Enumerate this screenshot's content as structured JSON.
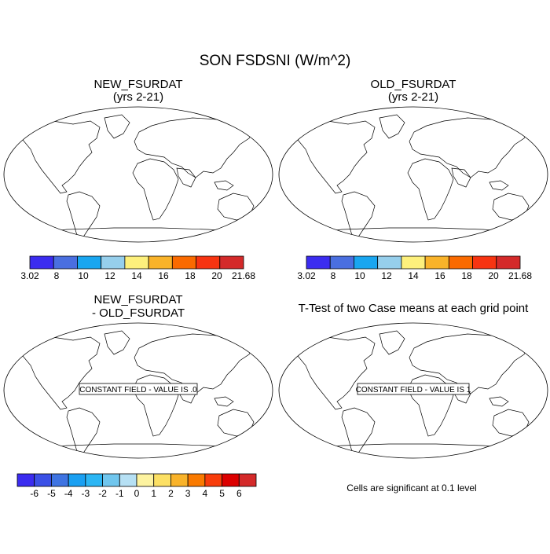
{
  "title": "SON FSDSNI (W/m^2)",
  "panels": [
    {
      "id": "new",
      "title_line1": "NEW_FSURDAT",
      "title_line2": "(yrs 2-21)",
      "fill": true
    },
    {
      "id": "old",
      "title_line1": "OLD_FSURDAT",
      "title_line2": "(yrs 2-21)",
      "fill": true
    },
    {
      "id": "diff",
      "title_line1": "NEW_FSURDAT",
      "title_line2": "- OLD_FSURDAT",
      "fill": false,
      "constant_label": "CONSTANT FIELD - VALUE IS .0"
    },
    {
      "id": "ttest",
      "title_line1": "T-Test of two Case means at each grid point",
      "title_line2": "",
      "fill": false,
      "constant_label": "CONSTANT FIELD - VALUE IS 1"
    }
  ],
  "colorbar_top": {
    "labels": [
      "3.02",
      "8",
      "10",
      "12",
      "14",
      "16",
      "18",
      "20",
      "21.68"
    ],
    "colors": [
      "#3b2cf0",
      "#4a6fe0",
      "#19a6f0",
      "#96cfec",
      "#fdf07c",
      "#f9b32a",
      "#fa6a00",
      "#f73411",
      "#d42a2a"
    ]
  },
  "colorbar_diff": {
    "labels": [
      "-6",
      "-5",
      "-4",
      "-3",
      "-2",
      "-1",
      "0",
      "1",
      "2",
      "3",
      "4",
      "5",
      "6"
    ],
    "colors": [
      "#3b2cf0",
      "#3b50e6",
      "#3f74e2",
      "#1aa0f2",
      "#2cb6f4",
      "#70c6ee",
      "#b6e0f4",
      "#fdf3a0",
      "#fce064",
      "#f9b32a",
      "#fa7a00",
      "#f83d0b",
      "#dc0000",
      "#d42a2a"
    ]
  },
  "significance_note": "Cells are significant at 0.1 level"
}
